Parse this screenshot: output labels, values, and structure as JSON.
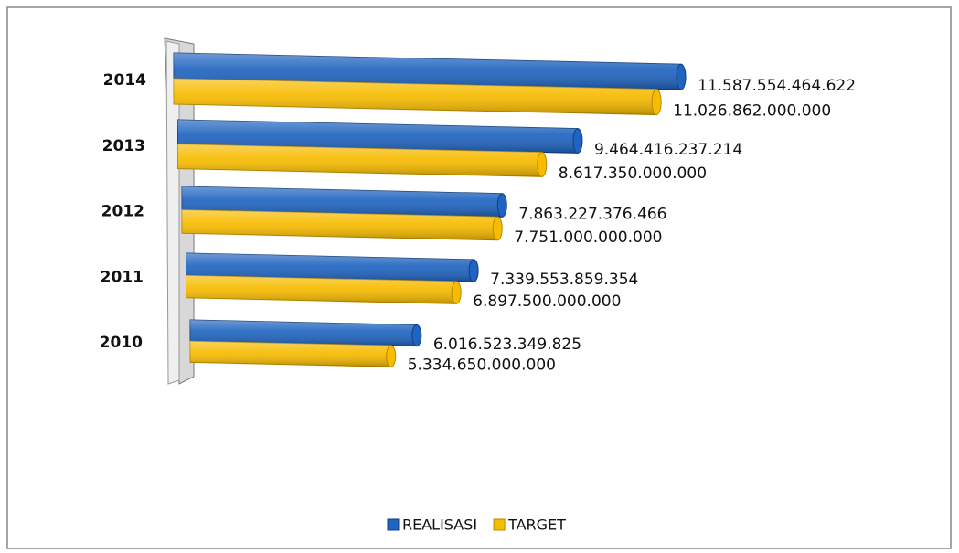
{
  "chart_data": {
    "type": "bar3d",
    "categories": [
      "2014",
      "2013",
      "2012",
      "2011",
      "2010"
    ],
    "series": [
      {
        "name": "REALISASI",
        "color": "#1f64c0",
        "values": [
          11587554464622,
          9464416237214,
          7863227376466,
          7339553859354,
          6016523349825
        ],
        "value_labels": [
          "11.587.554.464.622",
          "9.464.416.237.214",
          "7.863.227.376.466",
          "7.339.553.859.354",
          "6.016.523.349.825"
        ]
      },
      {
        "name": "TARGET",
        "color": "#f7bb00",
        "values": [
          11026862000000,
          8617350000000,
          7751000000000,
          6897500000000,
          5334650000000
        ],
        "value_labels": [
          "11.026.862.000.000",
          "8.617.350.000.000",
          "7.751.000.000.000",
          "6.897.500.000.000",
          "5.334.650.000.000"
        ]
      }
    ],
    "legend": "bottom"
  }
}
